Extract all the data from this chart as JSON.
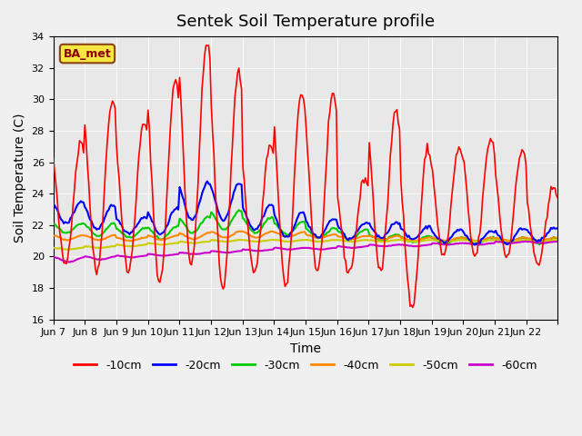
{
  "title": "Sentek Soil Temperature profile",
  "xlabel": "Time",
  "ylabel": "Soil Temperature (C)",
  "ylim": [
    16,
    34
  ],
  "yticks": [
    16,
    18,
    20,
    22,
    24,
    26,
    28,
    30,
    32,
    34
  ],
  "background_color": "#e8e8e8",
  "plot_bg_color": "#e8e8e8",
  "legend_label": "BA_met",
  "colors": {
    "-10cm": "#ff0000",
    "-20cm": "#0000ff",
    "-30cm": "#00cc00",
    "-40cm": "#ff8800",
    "-50cm": "#cccc00",
    "-60cm": "#cc00cc"
  },
  "x_labels": [
    "Jun 7",
    "Jun 8",
    "Jun 9",
    "Jun 10",
    "Jun 11",
    "Jun 12",
    "Jun 13",
    "Jun 14",
    "Jun 15",
    "Jun 16",
    "Jun 17",
    "Jun 18",
    "Jun 19",
    "Jun 20",
    "Jun 21",
    "Jun 22",
    ""
  ],
  "n_days": 16,
  "means_10": [
    23.4,
    24.5,
    23.75,
    24.8,
    26.5,
    24.9,
    23.0,
    24.25,
    24.65,
    22.0,
    24.2,
    21.8,
    23.45,
    23.75,
    23.4,
    22.0
  ],
  "amps_10": [
    3.9,
    5.5,
    4.75,
    6.5,
    7.1,
    6.9,
    4.0,
    6.25,
    5.65,
    3.0,
    5.2,
    5.1,
    3.45,
    3.75,
    3.4,
    2.5
  ],
  "means_20": [
    22.8,
    22.5,
    22.0,
    22.2,
    23.5,
    23.5,
    22.5,
    22.0,
    21.8,
    21.6,
    21.7,
    21.5,
    21.3,
    21.2,
    21.3,
    21.4
  ],
  "amps_20": [
    0.7,
    0.8,
    0.5,
    0.8,
    1.2,
    1.2,
    0.8,
    0.8,
    0.6,
    0.5,
    0.5,
    0.4,
    0.4,
    0.4,
    0.5,
    0.4
  ],
  "means_30": [
    21.8,
    21.7,
    21.5,
    21.5,
    22.0,
    22.3,
    22.0,
    21.8,
    21.5,
    21.4,
    21.2,
    21.1,
    21.0,
    21.0,
    21.0,
    21.0
  ],
  "amps_30": [
    0.3,
    0.4,
    0.3,
    0.4,
    0.5,
    0.6,
    0.5,
    0.4,
    0.3,
    0.3,
    0.2,
    0.2,
    0.2,
    0.2,
    0.2,
    0.2
  ],
  "means_40": [
    21.2,
    21.2,
    21.1,
    21.2,
    21.3,
    21.4,
    21.4,
    21.4,
    21.3,
    21.2,
    21.2,
    21.1,
    21.1,
    21.1,
    21.1,
    21.1
  ],
  "amps_40": [
    0.15,
    0.15,
    0.1,
    0.15,
    0.2,
    0.2,
    0.2,
    0.15,
    0.1,
    0.1,
    0.1,
    0.1,
    0.1,
    0.1,
    0.1,
    0.1
  ],
  "means_50": [
    20.5,
    20.6,
    20.7,
    20.8,
    20.9,
    21.0,
    21.0,
    21.0,
    21.0,
    21.0,
    21.0,
    21.0,
    21.0,
    21.0,
    21.0,
    21.0
  ],
  "amps_50": [
    0.05,
    0.05,
    0.05,
    0.05,
    0.05,
    0.05,
    0.05,
    0.05,
    0.05,
    0.05,
    0.05,
    0.05,
    0.05,
    0.05,
    0.05,
    0.05
  ],
  "means_60": [
    19.8,
    19.9,
    20.0,
    20.1,
    20.2,
    20.3,
    20.4,
    20.5,
    20.5,
    20.6,
    20.7,
    20.7,
    20.8,
    20.8,
    20.9,
    20.9
  ],
  "amps_60": [
    0.15,
    0.1,
    0.05,
    0.05,
    0.05,
    0.05,
    0.05,
    0.05,
    0.05,
    0.05,
    0.05,
    0.05,
    0.05,
    0.05,
    0.05,
    0.05
  ]
}
